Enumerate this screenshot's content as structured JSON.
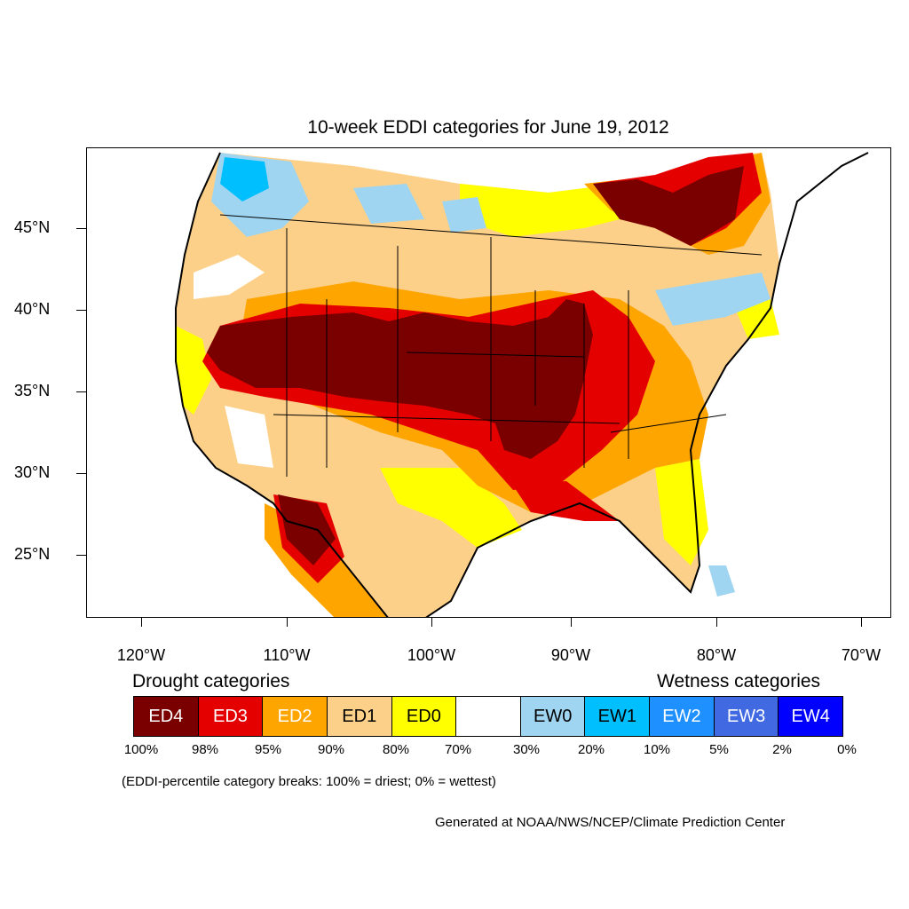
{
  "title": "10-week EDDI categories for June 19, 2012",
  "map": {
    "lat_labels": [
      "45°N",
      "40°N",
      "35°N",
      "30°N",
      "25°N"
    ],
    "lon_labels": [
      "120°W",
      "110°W",
      "100°W",
      "90°W",
      "80°W",
      "70°W"
    ]
  },
  "legend": {
    "drought_heading": "Drought categories",
    "wetness_heading": "Wetness categories",
    "categories": [
      {
        "label": "ED4",
        "color": "#7a0000",
        "text_color": "#ffffff"
      },
      {
        "label": "ED3",
        "color": "#e50000",
        "text_color": "#ffffff"
      },
      {
        "label": "ED2",
        "color": "#ffa500",
        "text_color": "#ffffff"
      },
      {
        "label": "ED1",
        "color": "#fdd08a",
        "text_color": "#000000"
      },
      {
        "label": "ED0",
        "color": "#ffff00",
        "text_color": "#000000"
      },
      {
        "label": "",
        "color": "#ffffff",
        "text_color": "#000000"
      },
      {
        "label": "EW0",
        "color": "#9fd5f0",
        "text_color": "#000000"
      },
      {
        "label": "EW1",
        "color": "#00bfff",
        "text_color": "#000000"
      },
      {
        "label": "EW2",
        "color": "#1e90ff",
        "text_color": "#ffffff"
      },
      {
        "label": "EW3",
        "color": "#4169e1",
        "text_color": "#ffffff"
      },
      {
        "label": "EW4",
        "color": "#0000ff",
        "text_color": "#ffffff"
      }
    ],
    "percent_breaks": [
      "100%",
      "98%",
      "95%",
      "90%",
      "80%",
      "70%",
      "30%",
      "20%",
      "10%",
      "5%",
      "2%",
      "0%"
    ]
  },
  "note": "(EDDI-percentile category breaks: 100% = driest; 0% = wettest)",
  "credit": "Generated at NOAA/NWS/NCEP/Climate Prediction Center"
}
